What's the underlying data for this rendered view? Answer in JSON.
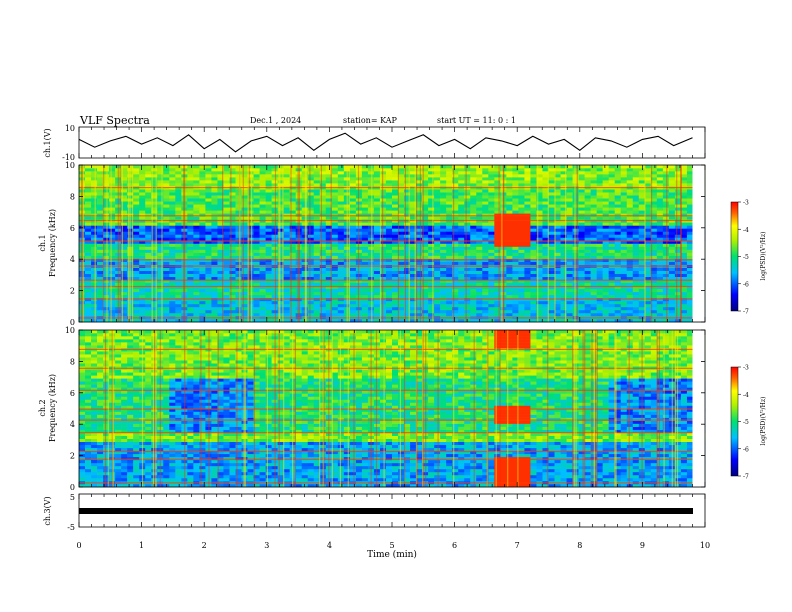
{
  "header": {
    "title": "VLF Spectra",
    "date": "Dec.1 , 2024",
    "station": "station= KAP",
    "start": "start  UT =   11: 0   : 1"
  },
  "chart_data": [
    {
      "type": "line",
      "panel": "ch1_waveform",
      "ylabel": "ch.1(V)",
      "ylim": [
        -10,
        10
      ],
      "xlim": [
        0,
        10
      ],
      "yticks": [
        "10",
        "-10"
      ],
      "x": [
        0.0,
        0.25,
        0.5,
        0.75,
        1.0,
        1.25,
        1.5,
        1.75,
        2.0,
        2.25,
        2.5,
        2.75,
        3.0,
        3.25,
        3.5,
        3.75,
        4.0,
        4.25,
        4.5,
        4.75,
        5.0,
        5.25,
        5.5,
        5.75,
        6.0,
        6.25,
        6.5,
        6.75,
        7.0,
        7.25,
        7.5,
        7.75,
        8.0,
        8.25,
        8.5,
        8.75,
        9.0,
        9.25,
        9.5,
        9.8
      ],
      "y": [
        2,
        -3,
        1,
        4,
        -1,
        3,
        -2,
        5,
        -4,
        2,
        -6,
        1,
        4,
        -2,
        3,
        -5,
        2,
        6,
        -1,
        3,
        -3,
        1,
        5,
        -2,
        2,
        -4,
        3,
        1,
        -2,
        4,
        -1,
        2,
        -5,
        3,
        1,
        -3,
        2,
        4,
        -2,
        3
      ]
    },
    {
      "type": "heatmap",
      "panel": "ch1_spectrogram",
      "ylabel": "ch.1\nFrequency (kHz)",
      "ylim": [
        0,
        10
      ],
      "xlim": [
        0,
        10
      ],
      "yticks": [
        "0",
        "2",
        "4",
        "6",
        "8",
        "10"
      ],
      "colorbar": {
        "label": "log(PSD)(V²/Hz)",
        "range": [
          -7,
          -3
        ],
        "ticks": [
          "-3",
          "-4",
          "-5",
          "-6",
          "-7"
        ]
      }
    },
    {
      "type": "heatmap",
      "panel": "ch2_spectrogram",
      "ylabel": "ch.2\nFrequency (kHz)",
      "ylim": [
        0,
        10
      ],
      "xlim": [
        0,
        10
      ],
      "yticks": [
        "0",
        "2",
        "4",
        "6",
        "8",
        "10"
      ],
      "colorbar": {
        "label": "log(PSD)(V²/Hz)",
        "range": [
          -7,
          -3
        ],
        "ticks": [
          "-3",
          "-4",
          "-5",
          "-6",
          "-7"
        ]
      }
    },
    {
      "type": "line",
      "panel": "ch3_waveform",
      "ylabel": "ch.3(V)",
      "ylim": [
        -5,
        5
      ],
      "xlim": [
        0,
        10
      ],
      "yticks": [
        "5",
        "-5"
      ],
      "x": [
        0,
        9.8
      ],
      "y": [
        0,
        0
      ]
    }
  ],
  "xaxis": {
    "label": "Time (min)",
    "ticks": [
      "0",
      "1",
      "2",
      "3",
      "4",
      "5",
      "6",
      "7",
      "8",
      "9",
      "10"
    ]
  }
}
